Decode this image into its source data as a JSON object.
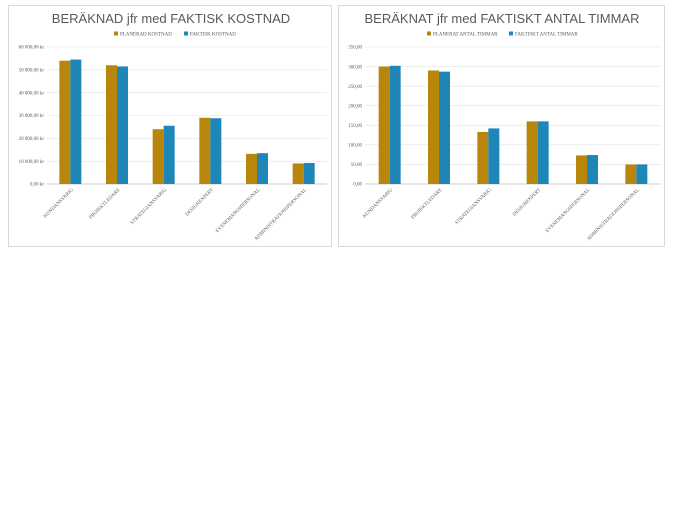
{
  "chart_data": [
    {
      "type": "bar",
      "title": "BERÄKNAD jfr med FAKTISK KOSTNAD",
      "categories": [
        "KUNDANSVARIG",
        "PROJEKTLEDARE",
        "STRATEGIANSVARIG",
        "DESIGNEXPERT",
        "EVENEMANGSPERSONAL",
        "ADMINISTRATIONSPERSONAL"
      ],
      "series": [
        {
          "name": "PLANERAD KOSTNAD",
          "color": "#b8860b",
          "values": [
            54000,
            52000,
            24000,
            29000,
            13200,
            9000
          ]
        },
        {
          "name": "FAKTISK KOSTNAD",
          "color": "#1f86b8",
          "values": [
            54500,
            51500,
            25500,
            28800,
            13500,
            9200
          ]
        }
      ],
      "ylim": [
        0,
        60000
      ],
      "yticks": [
        "0,00 kr",
        "10 000,00 kr",
        "20 000,00 kr",
        "30 000,00 kr",
        "40 000,00 kr",
        "50 000,00 kr",
        "60 000,00 kr"
      ],
      "ytick_values": [
        0,
        10000,
        20000,
        30000,
        40000,
        50000,
        60000
      ],
      "grid": true,
      "legend": "top"
    },
    {
      "type": "bar",
      "title": "BERÄKNAT jfr med FAKTISKT ANTAL TIMMAR",
      "categories": [
        "KUNDANSVARIG",
        "PROJEKTLEDARE",
        "STRATEGIANSVARIG",
        "DESIGNEXPERT",
        "EVENEMANGSPERSONAL",
        "ADMINISTRATIONSPERSONAL"
      ],
      "series": [
        {
          "name": "PLANERAT ANTAL TIMMAR",
          "color": "#b8860b",
          "values": [
            300,
            290,
            133,
            160,
            73,
            50
          ]
        },
        {
          "name": "FAKTISKT ANTAL TIMMAR",
          "color": "#1f86b8",
          "values": [
            302,
            287,
            142,
            160,
            74,
            50
          ]
        }
      ],
      "ylim": [
        0,
        350
      ],
      "yticks": [
        "0,00",
        "50,00",
        "100,00",
        "150,00",
        "200,00",
        "250,00",
        "300,00",
        "350,00"
      ],
      "ytick_values": [
        0,
        50,
        100,
        150,
        200,
        250,
        300,
        350
      ],
      "grid": true,
      "legend": "top"
    }
  ]
}
